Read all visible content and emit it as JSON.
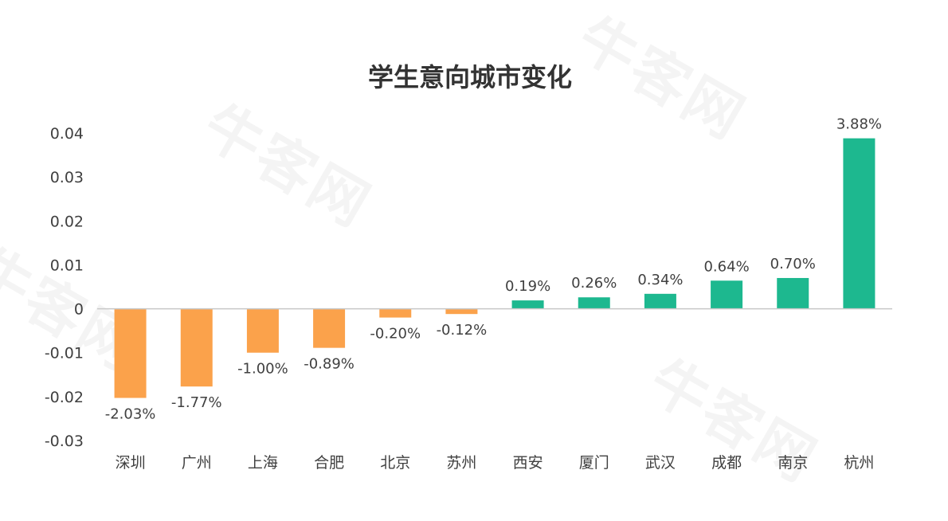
{
  "watermark": "牛客网",
  "colors": {
    "positive": "#1db88f",
    "negative": "#fba24b",
    "axis": "#c8c8c8",
    "text": "#404040",
    "title": "#333333"
  },
  "chart_data": {
    "type": "bar",
    "title": "学生意向城市变化",
    "xlabel": "",
    "ylabel": "",
    "ylim": [
      -0.03,
      0.04
    ],
    "yticks": [
      "0.04",
      "0.03",
      "0.02",
      "0.01",
      "0",
      "-0.01",
      "-0.02",
      "-0.03"
    ],
    "ytick_values": [
      0.04,
      0.03,
      0.02,
      0.01,
      0,
      -0.01,
      -0.02,
      -0.03
    ],
    "grid": false,
    "categories": [
      "深圳",
      "广州",
      "上海",
      "合肥",
      "北京",
      "苏州",
      "西安",
      "厦门",
      "武汉",
      "成都",
      "南京",
      "杭州"
    ],
    "values": [
      -0.0203,
      -0.0177,
      -0.01,
      -0.0089,
      -0.002,
      -0.0012,
      0.0019,
      0.0026,
      0.0034,
      0.0064,
      0.007,
      0.0388
    ],
    "data_labels": [
      "-2.03%",
      "-1.77%",
      "-1.00%",
      "-0.89%",
      "-0.20%",
      "-0.12%",
      "0.19%",
      "0.26%",
      "0.34%",
      "0.64%",
      "0.70%",
      "3.88%"
    ]
  }
}
